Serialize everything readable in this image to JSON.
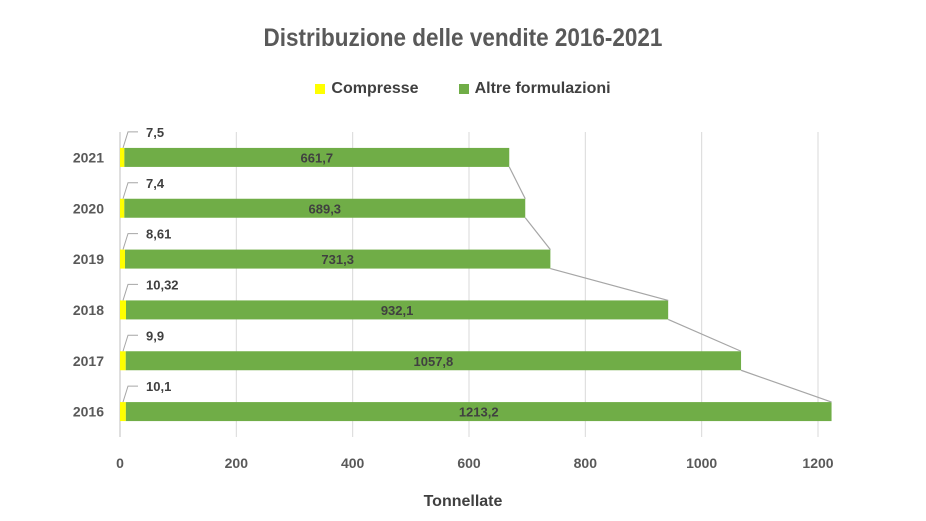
{
  "chart_data": {
    "type": "bar",
    "orientation": "horizontal",
    "stacked": true,
    "title": "Distribuzione delle vendite 2016-2021",
    "xlabel": "Tonnellate",
    "ylabel": "",
    "categories": [
      "2016",
      "2017",
      "2018",
      "2019",
      "2020",
      "2021"
    ],
    "series": [
      {
        "name": "Compresse",
        "color": "#FFFF00",
        "values": [
          10.1,
          9.9,
          10.32,
          8.61,
          7.4,
          7.5
        ],
        "labels": [
          "10,1",
          "9,9",
          "10,32",
          "8,61",
          "7,4",
          "7,5"
        ]
      },
      {
        "name": "Altre formulazioni",
        "color": "#70AD47",
        "values": [
          1213.2,
          1057.8,
          932.1,
          731.3,
          689.3,
          661.7
        ],
        "labels": [
          "1213,2",
          "1057,8",
          "932,1",
          "731,3",
          "689,3",
          "661,7"
        ]
      }
    ],
    "xlim": [
      0,
      1200
    ],
    "xticks": [
      "0",
      "200",
      "400",
      "600",
      "800",
      "1000",
      "1200"
    ],
    "grid": true,
    "legend": "top"
  }
}
